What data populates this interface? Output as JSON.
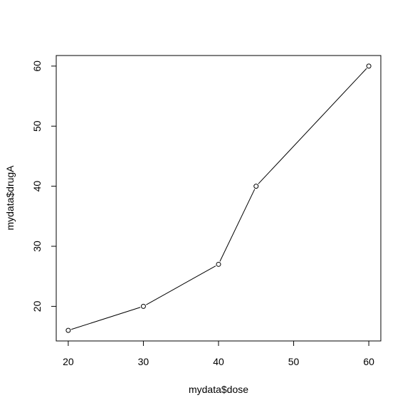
{
  "chart_data": {
    "type": "line",
    "xlabel": "mydata$dose",
    "ylabel": "mydata$drugA",
    "x": [
      20,
      30,
      40,
      45,
      60
    ],
    "series": [
      {
        "values": [
          16,
          20,
          27,
          40,
          60
        ]
      }
    ],
    "xlim": [
      18.4,
      61.6
    ],
    "ylim": [
      14.24,
      61.76
    ],
    "xticks": [
      20,
      30,
      40,
      50,
      60
    ],
    "yticks": [
      20,
      30,
      40,
      50,
      60
    ],
    "grid": false,
    "marker": "open-circle",
    "line_color": "#000000",
    "point_color": "#000000"
  }
}
